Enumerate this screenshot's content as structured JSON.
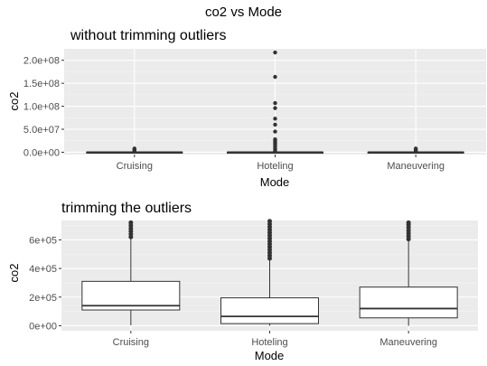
{
  "figure": {
    "title": "co2 vs Mode"
  },
  "chart_data": [
    {
      "type": "boxplot",
      "title": "without trimming outliers",
      "xlabel": "Mode",
      "ylabel": "co2",
      "categories": [
        "Cruising",
        "Hoteling",
        "Maneuvering"
      ],
      "ylim": [
        -5000000,
        225000000
      ],
      "yticks": [
        0,
        50000000,
        100000000,
        150000000,
        200000000
      ],
      "ytick_labels": [
        "0.0e+00",
        "5.0e+07",
        "1.0e+08",
        "1.5e+08",
        "2.0e+08"
      ],
      "boxes": [
        {
          "category": "Cruising",
          "min": 0,
          "q1": 0,
          "median": 100000,
          "q3": 300000,
          "max": 700000
        },
        {
          "category": "Hoteling",
          "min": 0,
          "q1": 0,
          "median": 80000,
          "q3": 200000,
          "max": 500000
        },
        {
          "category": "Maneuvering",
          "min": 0,
          "q1": 0,
          "median": 100000,
          "q3": 300000,
          "max": 700000
        }
      ],
      "outliers": [
        {
          "category": "Cruising",
          "values": [
            2000000,
            4000000,
            6000000,
            8000000
          ]
        },
        {
          "category": "Hoteling",
          "values": [
            2000000,
            5000000,
            8000000,
            12000000,
            16000000,
            19000000,
            22000000,
            25000000,
            28000000,
            45000000,
            60000000,
            73000000,
            96000000,
            107000000,
            164000000,
            217000000
          ]
        },
        {
          "category": "Maneuvering",
          "values": [
            2000000,
            4000000,
            6000000,
            8000000
          ]
        }
      ],
      "grid": true
    },
    {
      "type": "boxplot",
      "title": "trimming the outliers",
      "xlabel": "Mode",
      "ylabel": "co2",
      "categories": [
        "Cruising",
        "Hoteling",
        "Maneuvering"
      ],
      "ylim": [
        -35000,
        735000
      ],
      "yticks": [
        0,
        200000,
        400000,
        600000
      ],
      "ytick_labels": [
        "0e+00",
        "2e+05",
        "4e+05",
        "6e+05"
      ],
      "boxes": [
        {
          "category": "Cruising",
          "min": 3000,
          "q1": 110000,
          "median": 140000,
          "q3": 310000,
          "max": 620000
        },
        {
          "category": "Hoteling",
          "min": 0,
          "q1": 15000,
          "median": 65000,
          "q3": 195000,
          "max": 460000
        },
        {
          "category": "Maneuvering",
          "min": 0,
          "q1": 55000,
          "median": 120000,
          "q3": 270000,
          "max": 600000
        }
      ],
      "outliers": [
        {
          "category": "Cruising",
          "values": [
            620000,
            640000,
            660000,
            680000,
            700000,
            720000
          ]
        },
        {
          "category": "Hoteling",
          "values": [
            470000,
            490000,
            510000,
            530000,
            550000,
            570000,
            590000,
            610000,
            630000,
            650000,
            670000,
            690000,
            710000,
            730000
          ]
        },
        {
          "category": "Maneuvering",
          "values": [
            605000,
            625000,
            645000,
            665000,
            685000,
            705000,
            720000
          ]
        }
      ],
      "grid": true
    }
  ]
}
